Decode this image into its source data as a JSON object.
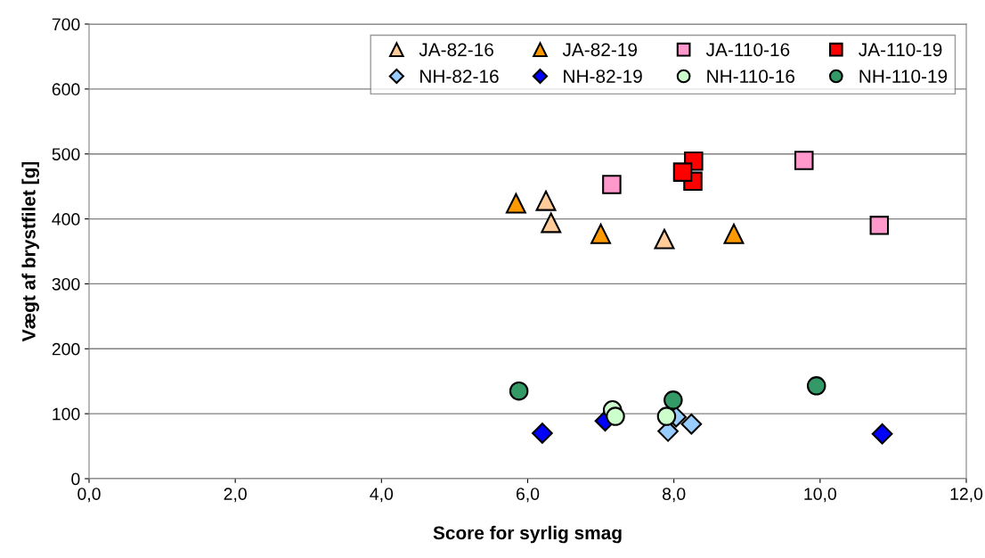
{
  "chart_data": {
    "type": "scatter",
    "xlabel": "Score for syrlig smag",
    "ylabel": "Vægt af brystfilet [g]",
    "xlim": [
      0,
      12
    ],
    "ylim": [
      0,
      700
    ],
    "xticks": [
      {
        "value": 0,
        "label": "0,0"
      },
      {
        "value": 2,
        "label": "2,0"
      },
      {
        "value": 4,
        "label": "4,0"
      },
      {
        "value": 6,
        "label": "6,0"
      },
      {
        "value": 8,
        "label": "8,0"
      },
      {
        "value": 10,
        "label": "10,0"
      },
      {
        "value": 12,
        "label": "12,0"
      }
    ],
    "yticks": [
      0,
      100,
      200,
      300,
      400,
      500,
      600,
      700
    ],
    "grid": "y",
    "legend": "top right",
    "series": [
      {
        "name": "JA-82-16",
        "color": "#ffcc99",
        "marker": "triangle",
        "x": [
          6.25,
          6.32,
          7.87
        ],
        "values": [
          428,
          394,
          369
        ]
      },
      {
        "name": "JA-82-19",
        "color": "#ff9900",
        "marker": "triangle",
        "x": [
          5.84,
          7.0,
          8.82
        ],
        "values": [
          424,
          377,
          377
        ]
      },
      {
        "name": "JA-110-16",
        "color": "#ff99cc",
        "marker": "square",
        "x": [
          7.15,
          9.78,
          10.81
        ],
        "values": [
          453,
          490,
          390
        ]
      },
      {
        "name": "JA-110-19",
        "color": "#ff0000",
        "marker": "square",
        "x": [
          8.27,
          8.26,
          8.12
        ],
        "values": [
          489,
          458,
          472
        ]
      },
      {
        "name": "NH-82-16",
        "color": "#99ccff",
        "marker": "diamond",
        "x": [
          7.92,
          8.03,
          8.24
        ],
        "values": [
          73,
          95,
          84
        ]
      },
      {
        "name": "NH-82-19",
        "color": "#0000ff",
        "marker": "diamond",
        "x": [
          6.2,
          7.06,
          10.85
        ],
        "values": [
          70,
          89,
          69
        ]
      },
      {
        "name": "NH-110-16",
        "color": "#ccffcc",
        "marker": "circle",
        "x": [
          7.16,
          7.2,
          7.9
        ],
        "values": [
          106,
          96,
          96
        ]
      },
      {
        "name": "NH-110-19",
        "color": "#339966",
        "marker": "circle",
        "x": [
          5.88,
          7.99,
          9.95
        ],
        "values": [
          135,
          121,
          143
        ]
      }
    ]
  }
}
